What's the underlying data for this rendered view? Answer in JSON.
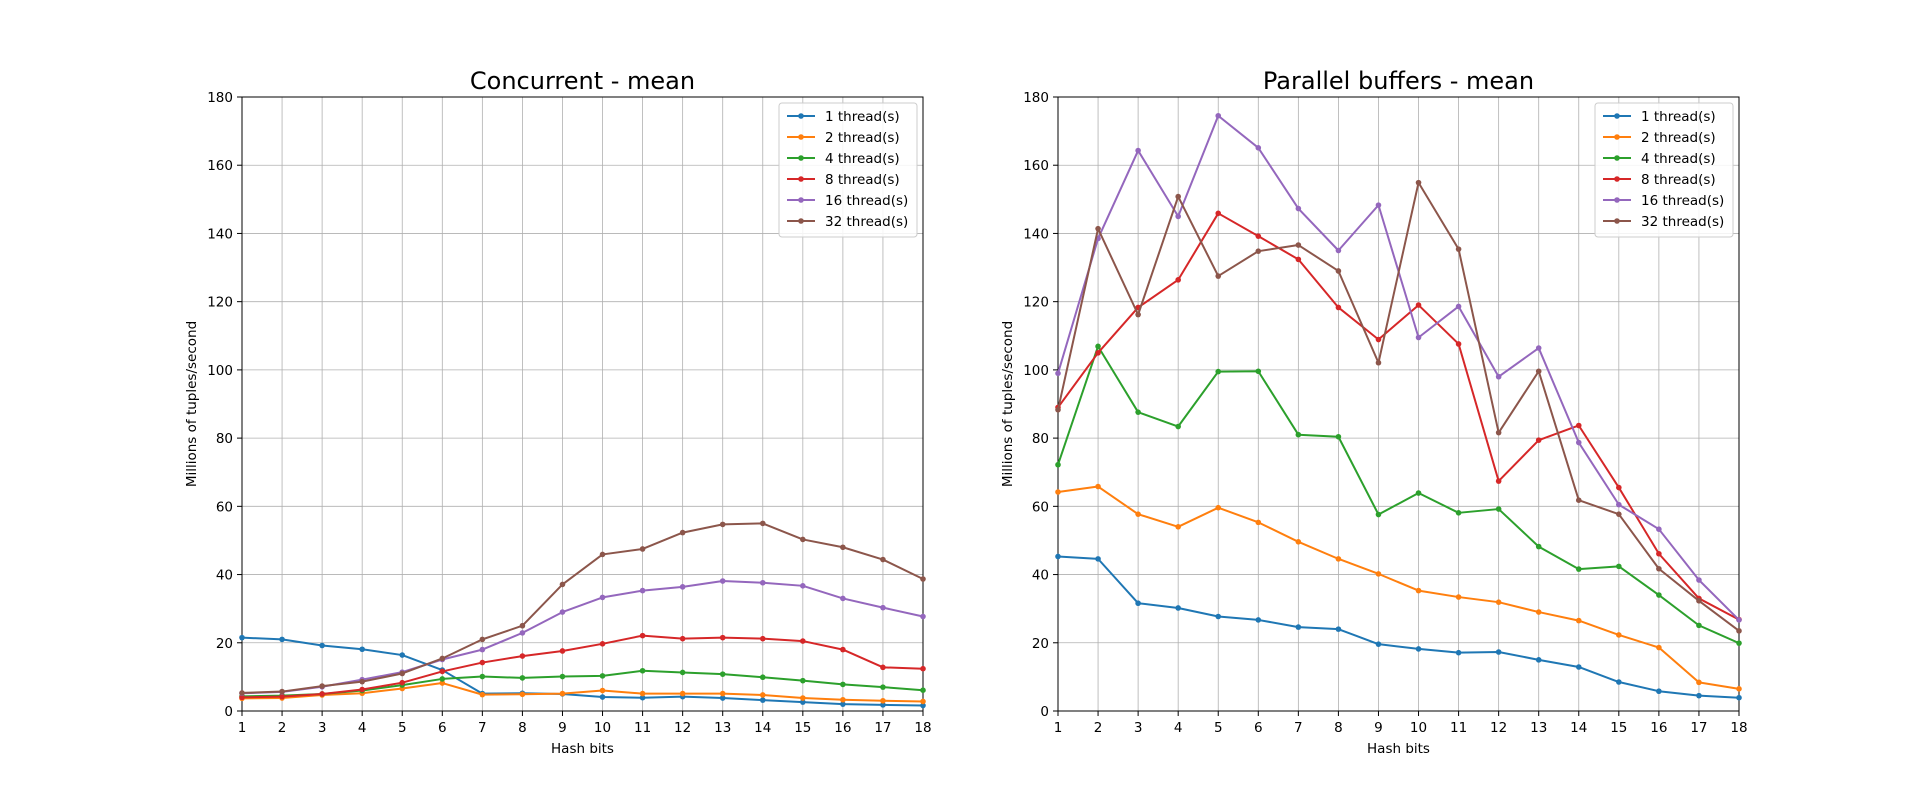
{
  "chart_data": [
    {
      "type": "line",
      "title": "Concurrent - mean",
      "xlabel": "Hash bits",
      "ylabel": "Millions of tuples/second",
      "xlim": [
        1,
        18
      ],
      "ylim": [
        0,
        180
      ],
      "xticks": [
        1,
        2,
        3,
        4,
        5,
        6,
        7,
        8,
        9,
        10,
        11,
        12,
        13,
        14,
        15,
        16,
        17,
        18
      ],
      "yticks": [
        0,
        20,
        40,
        60,
        80,
        100,
        120,
        140,
        160,
        180
      ],
      "grid": true,
      "legend_position": "top-right",
      "x": [
        1,
        2,
        3,
        4,
        5,
        6,
        7,
        8,
        9,
        10,
        11,
        12,
        13,
        14,
        15,
        16,
        17,
        18
      ],
      "series": [
        {
          "name": "1 thread(s)",
          "color": "#1f77b4",
          "values": [
            21.5,
            21.0,
            19.2,
            18.1,
            16.4,
            12.0,
            5.1,
            5.2,
            5.0,
            4.1,
            3.9,
            4.2,
            3.8,
            3.2,
            2.6,
            2.0,
            1.8,
            1.6
          ]
        },
        {
          "name": "2 thread(s)",
          "color": "#ff7f0e",
          "values": [
            3.7,
            3.8,
            4.7,
            5.2,
            6.6,
            8.2,
            4.8,
            4.9,
            5.1,
            6.0,
            5.1,
            5.1,
            5.1,
            4.7,
            3.8,
            3.3,
            3.0,
            2.8
          ]
        },
        {
          "name": "4 thread(s)",
          "color": "#2ca02c",
          "values": [
            4.3,
            4.5,
            5.0,
            6.0,
            7.6,
            9.4,
            10.1,
            9.7,
            10.1,
            10.3,
            11.8,
            11.3,
            10.8,
            9.9,
            8.9,
            7.8,
            7.0,
            6.1
          ]
        },
        {
          "name": "8 thread(s)",
          "color": "#d62728",
          "values": [
            4.0,
            4.2,
            5.0,
            6.3,
            8.3,
            11.6,
            14.2,
            16.1,
            17.6,
            19.7,
            22.1,
            21.2,
            21.5,
            21.2,
            20.5,
            18.0,
            12.8,
            12.4
          ]
        },
        {
          "name": "16 thread(s)",
          "color": "#9467bd",
          "values": [
            5.2,
            5.6,
            7.1,
            9.2,
            11.4,
            15.1,
            18.0,
            22.9,
            29.0,
            33.3,
            35.3,
            36.4,
            38.1,
            37.6,
            36.7,
            33.0,
            30.3,
            27.7
          ]
        },
        {
          "name": "32 thread(s)",
          "color": "#8c564b",
          "values": [
            5.3,
            5.7,
            7.3,
            8.6,
            11.0,
            15.4,
            21.0,
            25.0,
            37.1,
            45.9,
            47.5,
            52.3,
            54.7,
            55.0,
            50.3,
            48.0,
            44.4,
            38.7
          ]
        }
      ]
    },
    {
      "type": "line",
      "title": "Parallel buffers - mean",
      "xlabel": "Hash bits",
      "ylabel": "Millions of tuples/second",
      "xlim": [
        1,
        18
      ],
      "ylim": [
        0,
        180
      ],
      "xticks": [
        1,
        2,
        3,
        4,
        5,
        6,
        7,
        8,
        9,
        10,
        11,
        12,
        13,
        14,
        15,
        16,
        17,
        18
      ],
      "yticks": [
        0,
        20,
        40,
        60,
        80,
        100,
        120,
        140,
        160,
        180
      ],
      "grid": true,
      "legend_position": "top-right",
      "x": [
        1,
        2,
        3,
        4,
        5,
        6,
        7,
        8,
        9,
        10,
        11,
        12,
        13,
        14,
        15,
        16,
        17,
        18
      ],
      "series": [
        {
          "name": "1 thread(s)",
          "color": "#1f77b4",
          "values": [
            45.3,
            44.6,
            31.6,
            30.2,
            27.7,
            26.7,
            24.6,
            24.0,
            19.6,
            18.2,
            17.1,
            17.3,
            15.0,
            12.9,
            8.5,
            5.8,
            4.5,
            3.9
          ]
        },
        {
          "name": "2 thread(s)",
          "color": "#ff7f0e",
          "values": [
            64.2,
            65.8,
            57.7,
            54.0,
            59.6,
            55.3,
            49.6,
            44.6,
            40.2,
            35.3,
            33.4,
            31.9,
            29.0,
            26.5,
            22.3,
            18.6,
            8.4,
            6.5
          ]
        },
        {
          "name": "4 thread(s)",
          "color": "#2ca02c",
          "values": [
            72.2,
            106.9,
            87.6,
            83.4,
            99.5,
            99.6,
            81.0,
            80.4,
            57.6,
            63.9,
            58.1,
            59.2,
            48.2,
            41.6,
            42.4,
            34.0,
            25.1,
            19.9
          ]
        },
        {
          "name": "8 thread(s)",
          "color": "#d62728",
          "values": [
            89.0,
            105.0,
            118.3,
            126.4,
            145.9,
            139.2,
            132.4,
            118.3,
            108.9,
            119.0,
            107.6,
            67.4,
            79.4,
            83.7,
            65.5,
            46.1,
            33.0,
            26.8
          ]
        },
        {
          "name": "16 thread(s)",
          "color": "#9467bd",
          "values": [
            99.0,
            138.5,
            164.3,
            145.0,
            174.5,
            165.1,
            147.3,
            135.0,
            148.3,
            109.5,
            118.6,
            98.0,
            106.4,
            78.7,
            60.5,
            53.3,
            38.4,
            26.7
          ]
        },
        {
          "name": "32 thread(s)",
          "color": "#8c564b",
          "values": [
            88.3,
            141.4,
            116.2,
            150.8,
            127.5,
            134.8,
            136.6,
            129.0,
            102.1,
            154.9,
            135.4,
            81.6,
            99.6,
            61.8,
            57.7,
            41.7,
            32.3,
            23.5
          ]
        }
      ]
    }
  ]
}
